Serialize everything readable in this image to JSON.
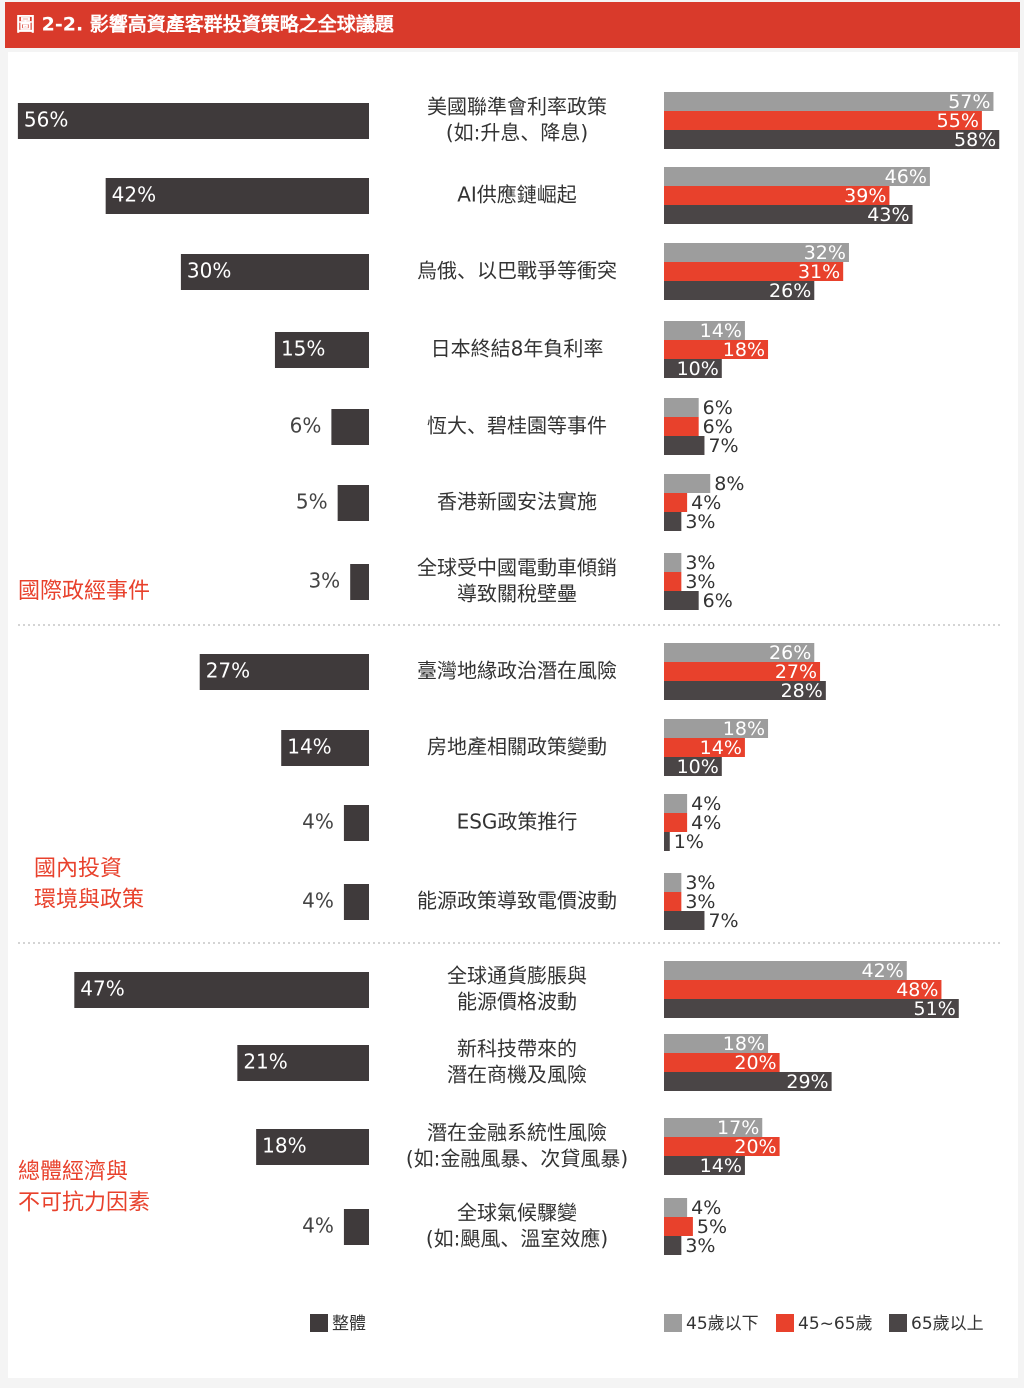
{
  "chart_data": {
    "type": "bar",
    "title": "圖 2-2. 影響高資產客群投資策略之全球議題",
    "groups": [
      {
        "label": [
          "國際政經事件"
        ],
        "categories": [
          [
            "美國聯準會利率政策",
            "(如:升息、降息)"
          ],
          [
            "AI供應鏈崛起"
          ],
          [
            "烏俄、以巴戰爭等衝突"
          ],
          [
            "日本終結8年負利率"
          ],
          [
            "恆大、碧桂園等事件"
          ],
          [
            "香港新國安法實施"
          ],
          [
            "全球受中國電動車傾銷",
            "導致關稅壁壘"
          ]
        ]
      },
      {
        "label": [
          "國內投資",
          "環境與政策"
        ],
        "categories": [
          [
            "臺灣地緣政治潛在風險"
          ],
          [
            "房地產相關政策變動"
          ],
          [
            "ESG政策推行"
          ],
          [
            "能源政策導致電價波動"
          ]
        ]
      },
      {
        "label": [
          "總體經濟與",
          "不可抗力因素"
        ],
        "categories": [
          [
            "全球通貨膨脹與",
            "能源價格波動"
          ],
          [
            "新科技帶來的",
            "潛在商機及風險"
          ],
          [
            "潛在金融系統性風險",
            "(如:金融風暴、次貸風暴)"
          ],
          [
            "全球氣候驟變",
            "(如:颶風、溫室效應)"
          ]
        ]
      }
    ],
    "series": [
      {
        "name": "整體",
        "color": "#3f3a3b",
        "values": [
          56,
          42,
          30,
          15,
          6,
          5,
          3,
          27,
          14,
          4,
          4,
          47,
          21,
          18,
          4
        ],
        "value_labels": [
          "56%",
          "42%",
          "30%",
          "15%",
          "6%",
          "5%",
          "3%",
          "27%",
          "14%",
          "4%",
          "4%",
          "47%",
          "21%",
          "18%",
          "4%"
        ]
      },
      {
        "name": "45歲以下",
        "color": "#9d9d9d",
        "values": [
          57,
          46,
          32,
          14,
          6,
          8,
          3,
          26,
          18,
          4,
          3,
          42,
          18,
          17,
          4
        ],
        "value_labels": [
          "57%",
          "46%",
          "32%",
          "14%",
          "6%",
          "8%",
          "3%",
          "26%",
          "18%",
          "4%",
          "3%",
          "42%",
          "18%",
          "17%",
          "4%"
        ]
      },
      {
        "name": "45~65歲",
        "color": "#e8412c",
        "values": [
          55,
          39,
          31,
          18,
          6,
          4,
          3,
          27,
          14,
          4,
          3,
          48,
          20,
          20,
          5
        ],
        "value_labels": [
          "55%",
          "39%",
          "31%",
          "18%",
          "6%",
          "4%",
          "3%",
          "27%",
          "14%",
          "4%",
          "3%",
          "48%",
          "20%",
          "20%",
          "5%"
        ]
      },
      {
        "name": "65歲以上",
        "color": "#4a4546",
        "values": [
          58,
          43,
          26,
          10,
          7,
          3,
          6,
          28,
          10,
          1,
          7,
          51,
          29,
          14,
          3
        ],
        "value_labels": [
          "58%",
          "43%",
          "26%",
          "10%",
          "7%",
          "3%",
          "6%",
          "28%",
          "10%",
          "1%",
          "7%",
          "51%",
          "29%",
          "14%",
          "3%"
        ]
      }
    ],
    "title_color": "#d93a2b",
    "group_label_color": "#e8412c"
  }
}
